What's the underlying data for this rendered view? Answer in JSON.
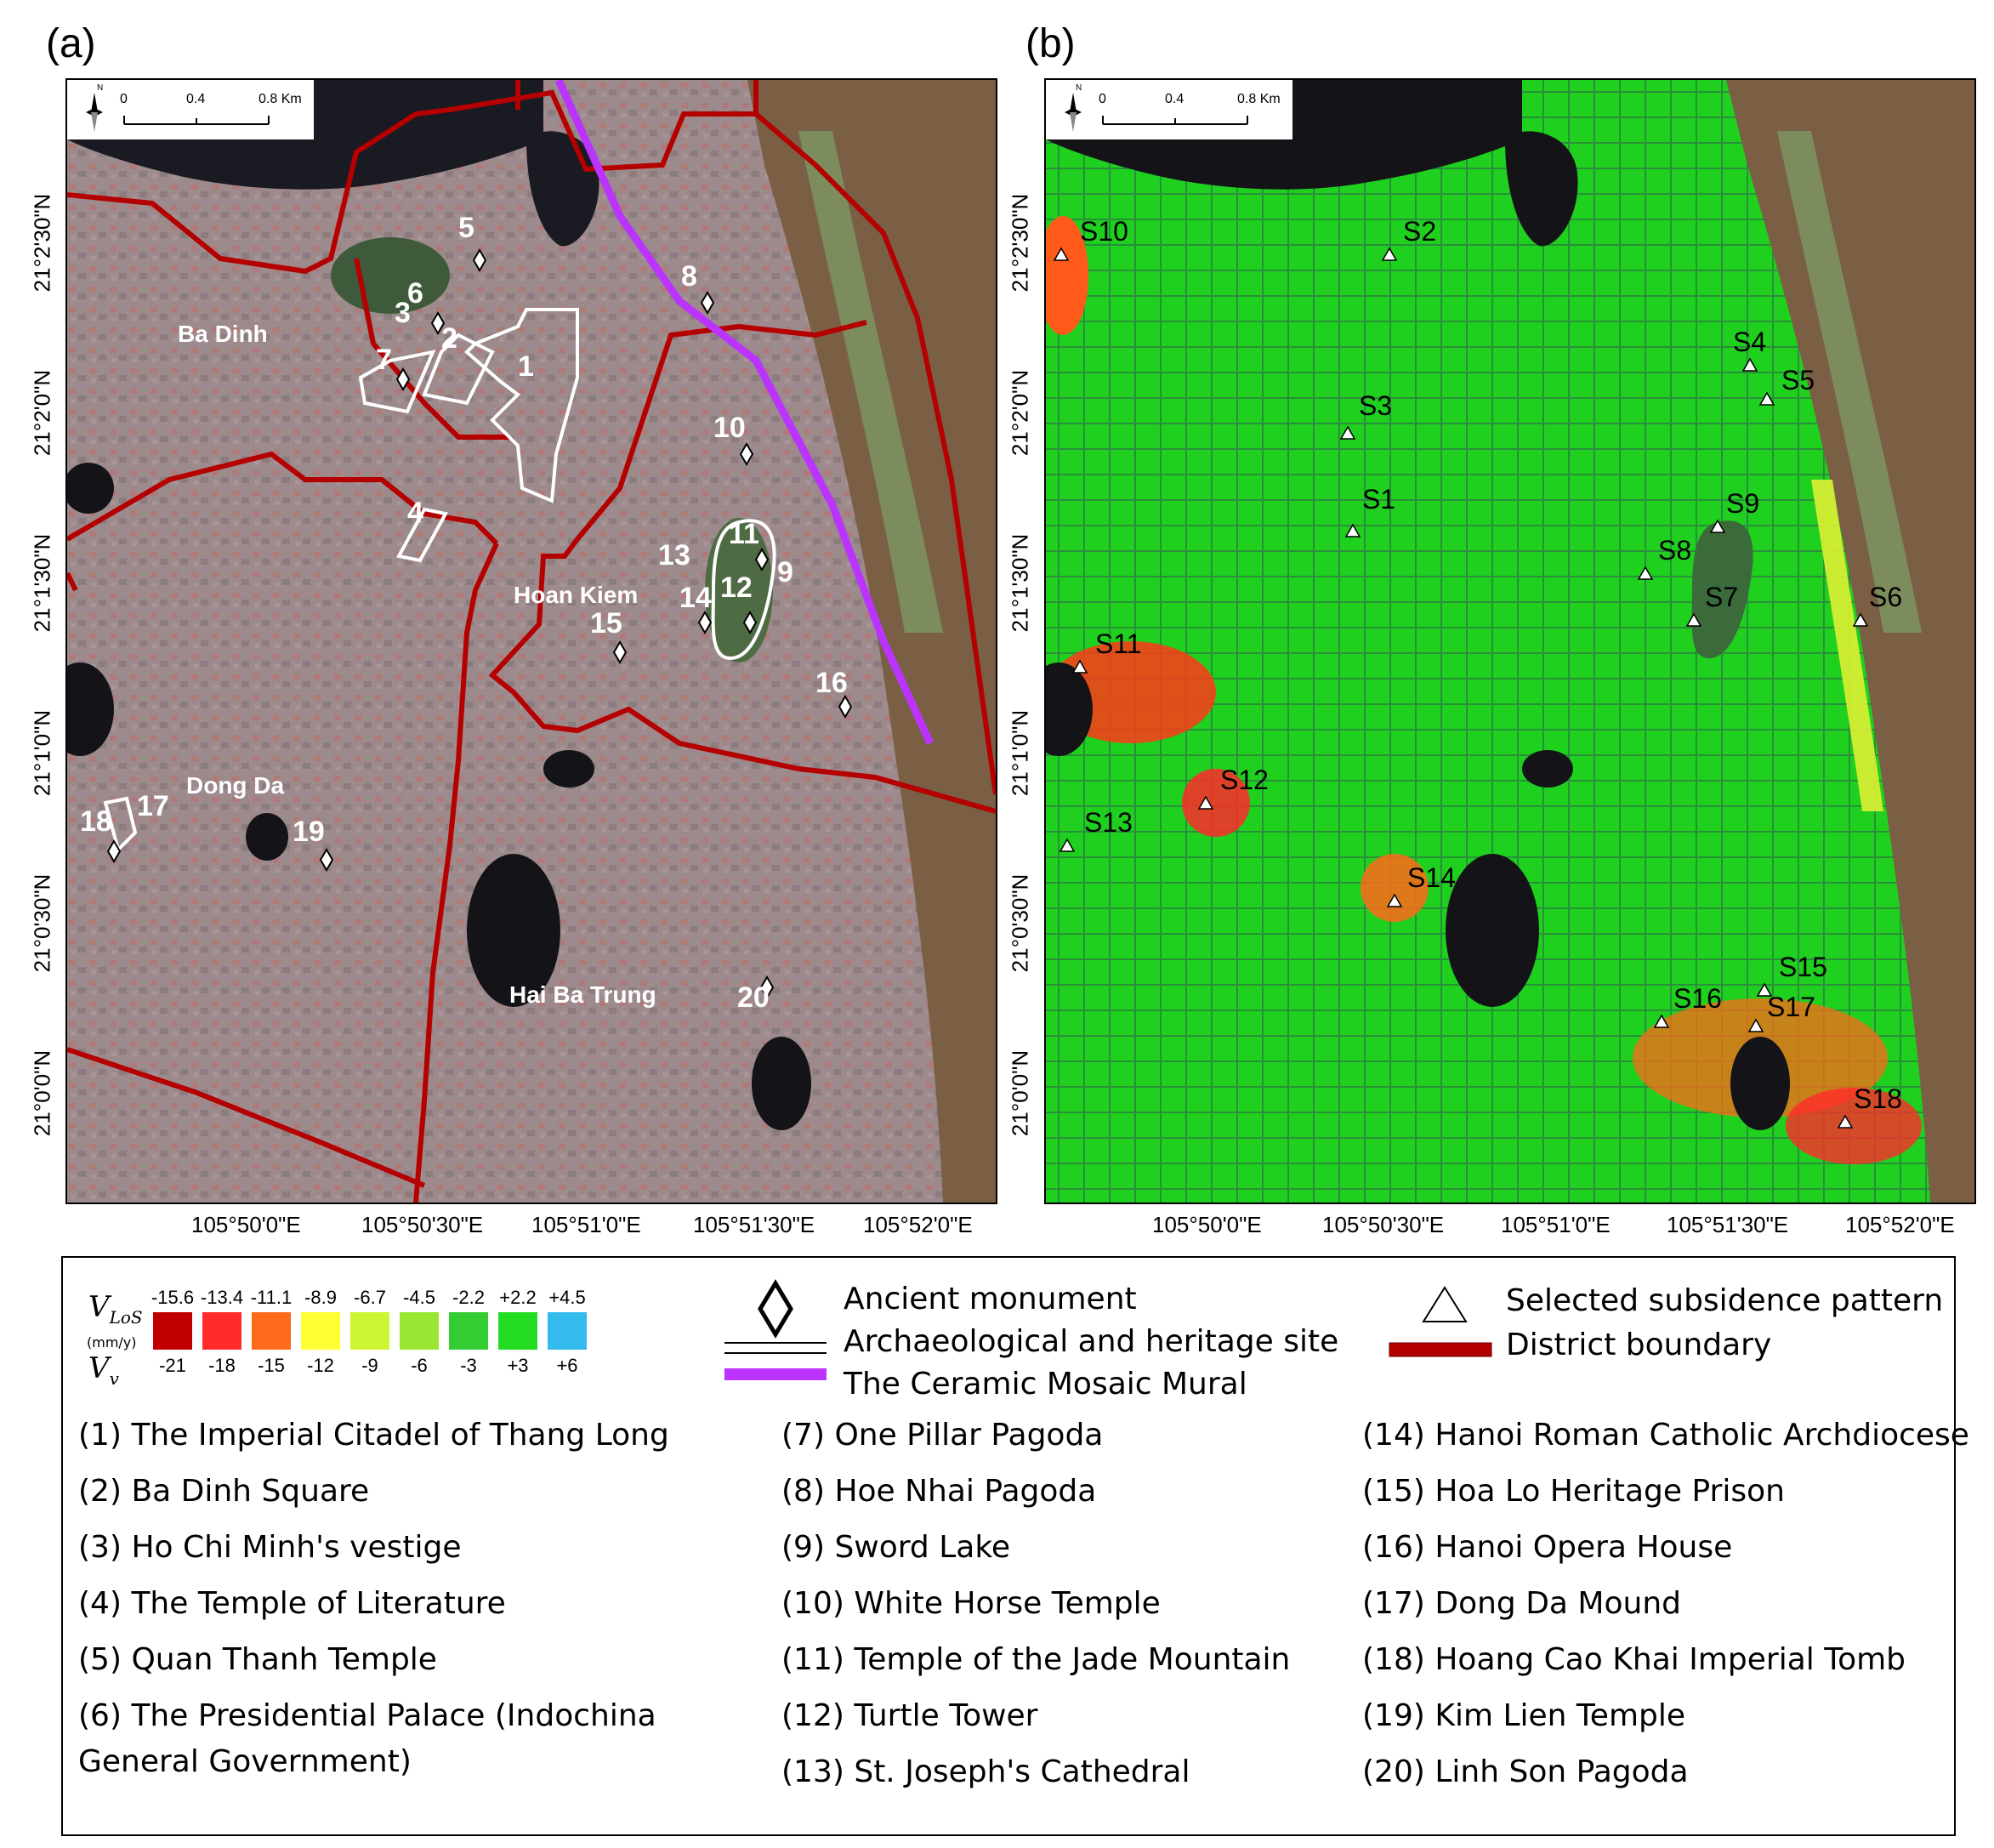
{
  "panels": {
    "a": {
      "tag": "(a)"
    },
    "b": {
      "tag": "(b)"
    }
  },
  "scalebar": {
    "ticks": [
      "0",
      "0.4",
      "0.8 Km"
    ],
    "north": "N"
  },
  "axes": {
    "lat_ticks": [
      "21°2'30\"N",
      "21°2'0\"N",
      "21°1'30\"N",
      "21°1'0\"N",
      "21°0'30\"N",
      "21°0'0\"N"
    ],
    "lon_ticks": [
      "105°50'0\"E",
      "105°50'30\"E",
      "105°51'0\"E",
      "105°51'30\"E",
      "105°52'0\"E"
    ]
  },
  "districts": [
    "Ba Dinh",
    "Hoan Kiem",
    "Dong Da",
    "Hai Ba Trung"
  ],
  "monument_labels": [
    "1",
    "2",
    "3",
    "4",
    "5",
    "6",
    "7",
    "8",
    "9",
    "10",
    "11",
    "12",
    "13",
    "14",
    "15",
    "16",
    "17",
    "18",
    "19",
    "20"
  ],
  "subsidence_labels": [
    "S1",
    "S2",
    "S3",
    "S4",
    "S5",
    "S6",
    "S7",
    "S8",
    "S9",
    "S10",
    "S11",
    "S12",
    "S13",
    "S14",
    "S15",
    "S16",
    "S17",
    "S18"
  ],
  "legend": {
    "vlos_label": "V",
    "vlos_sub": "LoS",
    "unit": "(mm/y)",
    "vv_label": "V",
    "vv_sub": "v",
    "vlos_values": [
      "-15.6",
      "-13.4",
      "-11.1",
      "-8.9",
      "-6.7",
      "-4.5",
      "-2.2",
      "+2.2",
      "+4.5"
    ],
    "vv_values": [
      "-21",
      "-18",
      "-15",
      "-12",
      "-9",
      "-6",
      "-3",
      "+3",
      "+6"
    ],
    "colors": [
      "#c00000",
      "#ff2a2a",
      "#ff6a1a",
      "#ffff33",
      "#ccf533",
      "#99e633",
      "#33cc33",
      "#22dd22",
      "#33bbee"
    ],
    "symbols": {
      "ancient_monument": "Ancient monument",
      "heritage_site": "Archaeological and heritage site",
      "mural": "The Ceramic Mosaic Mural",
      "subsidence": "Selected subsidence pattern",
      "district": "District boundary"
    },
    "col1": [
      "(1) The Imperial Citadel of Thang Long",
      "(2) Ba Dinh Square",
      "(3) Ho Chi Minh's vestige",
      "(4) The Temple of Literature",
      "(5) Quan Thanh Temple",
      "(6) The Presidential Palace (Indochina",
      "General Government)"
    ],
    "col2": [
      "(7) One Pillar Pagoda",
      "(8) Hoe Nhai Pagoda",
      "(9) Sword Lake",
      "(10) White Horse Temple",
      "(11) Temple of the Jade Mountain",
      "(12) Turtle Tower",
      "(13) St. Joseph's Cathedral"
    ],
    "col3": [
      "(14) Hanoi Roman Catholic Archdiocese",
      "(15) Hoa Lo Heritage Prison",
      "(16) Hanoi Opera House",
      "(17) Dong Da Mound",
      "(18) Hoang Cao Khai Imperial Tomb",
      "(19) Kim Lien Temple",
      "(20) Linh Son Pagoda"
    ]
  }
}
